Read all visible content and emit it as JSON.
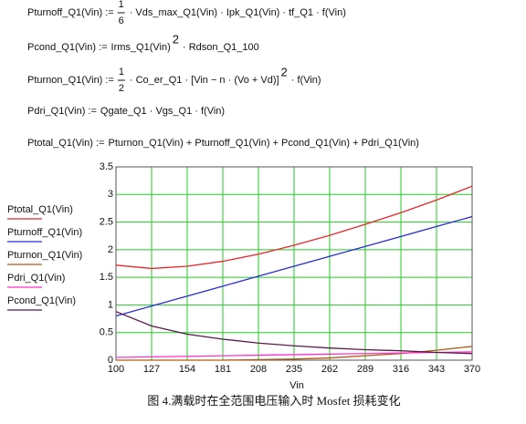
{
  "formulas": [
    {
      "lhs": "Pturnoff_Q1(Vin) :=",
      "num": "1",
      "den": "6",
      "rhs": "· Vds_max_Q1(Vin) · Ipk_Q1(Vin) · tf_Q1 · f(Vin)"
    },
    {
      "lhs": "Pcond_Q1(Vin) :=",
      "rhs": "Irms_Q1(Vin)",
      "sup": "2",
      "rhs2": "· Rdson_Q1_100"
    },
    {
      "lhs": "Pturnon_Q1(Vin) :=",
      "num": "1",
      "den": "2",
      "rhs": "· Co_er_Q1 · [Vin − n · (Vo + Vd)]",
      "sup": "2",
      "rhs2": "· f(Vin)"
    },
    {
      "lhs": "Pdri_Q1(Vin) :=",
      "rhs": "Qgate_Q1 · Vgs_Q1 · f(Vin)"
    },
    {
      "lhs": "Ptotal_Q1(Vin) :=",
      "rhs": "Pturnon_Q1(Vin) + Pturnoff_Q1(Vin) + Pcond_Q1(Vin) + Pdri_Q1(Vin)"
    }
  ],
  "chart_data": {
    "type": "line",
    "x_label": "Vin",
    "caption": "图 4.满载时在全范围电压输入时 Mosfet 损耗变化",
    "x": [
      100,
      127,
      154,
      181,
      208,
      235,
      262,
      289,
      316,
      343,
      370
    ],
    "series": [
      {
        "name": "Ptotal_Q1(Vin)",
        "color": "#e8262b",
        "values": [
          1.72,
          1.66,
          1.7,
          1.79,
          1.92,
          2.08,
          2.26,
          2.46,
          2.67,
          2.9,
          3.15
        ]
      },
      {
        "name": "Pturnoff_Q1(Vin)",
        "color": "#2a2ad8",
        "values": [
          0.8,
          0.98,
          1.16,
          1.34,
          1.52,
          1.7,
          1.88,
          2.06,
          2.24,
          2.42,
          2.6
        ]
      },
      {
        "name": "Pturnon_Q1(Vin)",
        "color": "#b05a10",
        "values": [
          0.0,
          0.0,
          0.0,
          0.0,
          0.01,
          0.02,
          0.04,
          0.08,
          0.12,
          0.18,
          0.25
        ]
      },
      {
        "name": "Pdri_Q1(Vin)",
        "color": "#ff33cc",
        "values": [
          0.05,
          0.06,
          0.07,
          0.08,
          0.09,
          0.1,
          0.11,
          0.12,
          0.13,
          0.14,
          0.15
        ]
      },
      {
        "name": "Pcond_Q1(Vin)",
        "color": "#5a1a4a",
        "values": [
          0.88,
          0.62,
          0.47,
          0.38,
          0.31,
          0.26,
          0.22,
          0.19,
          0.17,
          0.14,
          0.12
        ]
      }
    ],
    "xlim": [
      100,
      370
    ],
    "xticks": [
      100,
      127,
      154,
      181,
      208,
      235,
      262,
      289,
      316,
      343,
      370
    ],
    "ylim": [
      0,
      3.5
    ],
    "yticks": [
      0,
      0.5,
      1,
      1.5,
      2,
      2.5,
      3,
      3.5
    ],
    "grid": true,
    "grid_color": "#22cc22",
    "legend": "left"
  }
}
